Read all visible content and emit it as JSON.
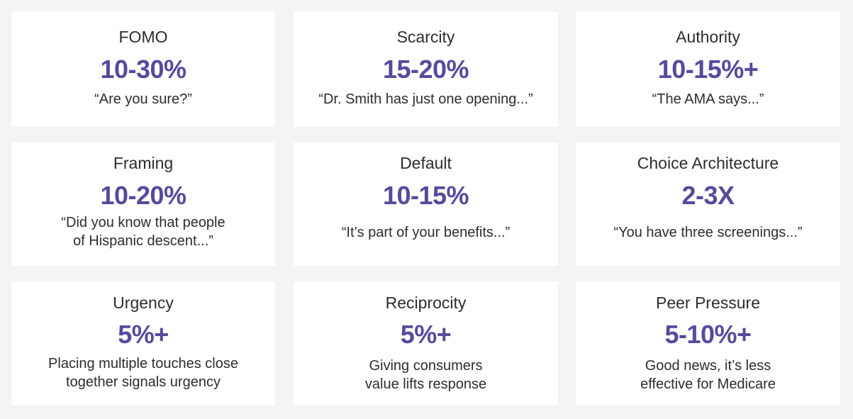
{
  "cards": [
    {
      "title": "FOMO",
      "stat": "10-30%",
      "desc": "“Are you sure?”"
    },
    {
      "title": "Scarcity",
      "stat": "15-20%",
      "desc": "“Dr. Smith has just one opening...”"
    },
    {
      "title": "Authority",
      "stat": "10-15%+",
      "desc": "“The AMA says...”"
    },
    {
      "title": "Framing",
      "stat": "10-20%",
      "desc": "“Did you know that people\nof Hispanic descent...”"
    },
    {
      "title": "Default",
      "stat": "10-15%",
      "desc": "“It’s part of your benefits...”"
    },
    {
      "title": "Choice Architecture",
      "stat": "2-3X",
      "desc": "“You have three screenings...”"
    },
    {
      "title": "Urgency",
      "stat": "5%+",
      "desc": "Placing multiple touches close\ntogether signals urgency"
    },
    {
      "title": "Reciprocity",
      "stat": "5%+",
      "desc": "Giving consumers\nvalue lifts response"
    },
    {
      "title": "Peer Pressure",
      "stat": "5-10%+",
      "desc": "Good news, it’s less\neffective for Medicare"
    }
  ],
  "colors": {
    "background": "#f2f4f5",
    "card": "#ffffff",
    "stat": "#574a9c",
    "text": "#2d2d2d"
  }
}
